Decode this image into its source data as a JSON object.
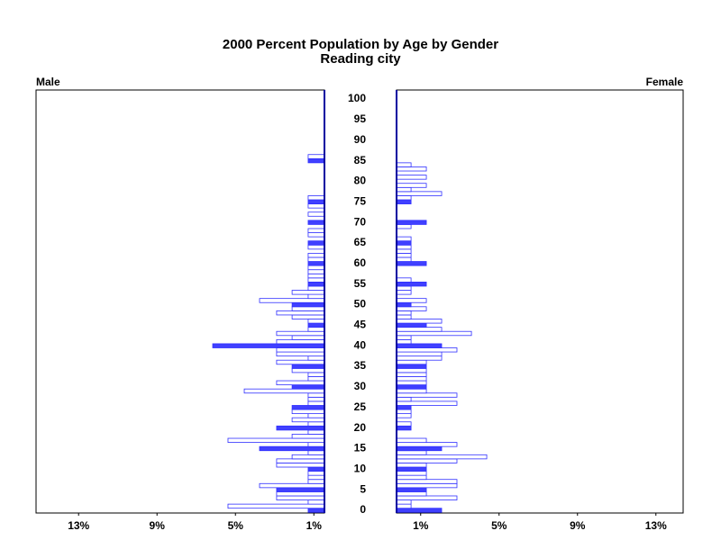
{
  "chart_data": [
    {
      "type": "bar",
      "orientation": "horizontal",
      "title": "2000 Percent Population by Age by Gender",
      "subtitle": "Reading city",
      "label": "Male",
      "x": [
        0,
        1,
        2,
        3,
        4,
        5,
        6,
        7,
        8,
        9,
        10,
        11,
        12,
        13,
        14,
        15,
        16,
        17,
        18,
        19,
        20,
        21,
        22,
        23,
        24,
        25,
        26,
        27,
        28,
        29,
        30,
        31,
        32,
        33,
        34,
        35,
        36,
        37,
        38,
        39,
        40,
        41,
        42,
        43,
        44,
        45,
        46,
        47,
        48,
        49,
        50,
        51,
        52,
        53,
        54,
        55,
        56,
        57,
        58,
        59,
        60,
        61,
        62,
        63,
        64,
        65,
        66,
        67,
        68,
        69,
        70,
        71,
        72,
        73,
        74,
        75,
        76,
        77,
        78,
        79,
        80,
        81,
        82,
        83,
        84,
        85,
        86,
        87,
        88,
        89,
        90,
        91,
        92,
        93,
        94,
        95,
        96,
        97,
        98,
        99,
        100
      ],
      "values": [
        1.29,
        5.38,
        1.29,
        2.9,
        2.9,
        2.9,
        3.77,
        1.29,
        1.29,
        1.29,
        1.29,
        2.9,
        2.9,
        2.11,
        1.29,
        3.77,
        1.29,
        5.38,
        2.11,
        1.29,
        2.9,
        1.29,
        2.11,
        1.29,
        2.11,
        2.11,
        1.29,
        1.29,
        1.29,
        4.55,
        2.11,
        2.9,
        1.29,
        1.29,
        2.11,
        2.11,
        2.9,
        1.29,
        2.9,
        2.9,
        6.16,
        2.9,
        2.11,
        2.9,
        1.29,
        1.29,
        1.29,
        2.11,
        2.9,
        2.11,
        2.11,
        3.77,
        1.29,
        2.11,
        1.29,
        1.29,
        1.29,
        1.29,
        1.29,
        1.29,
        1.29,
        1.29,
        1.29,
        null,
        1.29,
        1.29,
        null,
        1.29,
        1.29,
        null,
        1.29,
        null,
        1.29,
        null,
        1.29,
        1.29,
        1.29,
        null,
        null,
        null,
        null,
        null,
        null,
        null,
        null,
        1.29,
        1.29,
        null,
        null,
        null,
        null,
        null,
        null,
        null,
        null,
        null,
        null,
        null,
        null,
        null,
        null
      ],
      "fill_color": "#4040ff",
      "outline_color": "#3030ff",
      "filled_every": 5,
      "xlim": [
        15.17,
        0.46
      ],
      "xticks": [
        {
          "value": 13,
          "label": "13%"
        },
        {
          "value": 9,
          "label": "9%"
        },
        {
          "value": 5,
          "label": "5%"
        },
        {
          "value": 1,
          "label": "1%"
        }
      ],
      "ylim": [
        -0.66,
        102.2
      ],
      "yticks": [
        0,
        5,
        10,
        15,
        20,
        25,
        30,
        35,
        40,
        45,
        50,
        55,
        60,
        65,
        70,
        75,
        80,
        85,
        90,
        95,
        100
      ]
    },
    {
      "type": "bar",
      "orientation": "horizontal",
      "label": "Female",
      "x": [
        0,
        1,
        2,
        3,
        4,
        5,
        6,
        7,
        8,
        9,
        10,
        11,
        12,
        13,
        14,
        15,
        16,
        17,
        18,
        19,
        20,
        21,
        22,
        23,
        24,
        25,
        26,
        27,
        28,
        29,
        30,
        31,
        32,
        33,
        34,
        35,
        36,
        37,
        38,
        39,
        40,
        41,
        42,
        43,
        44,
        45,
        46,
        47,
        48,
        49,
        50,
        51,
        52,
        53,
        54,
        55,
        56,
        57,
        58,
        59,
        60,
        61,
        62,
        63,
        64,
        65,
        66,
        67,
        68,
        69,
        70,
        71,
        72,
        73,
        74,
        75,
        76,
        77,
        78,
        79,
        80,
        81,
        82,
        83,
        84,
        85,
        86,
        87,
        88,
        89,
        90,
        91,
        92,
        93,
        94,
        95,
        96,
        97,
        98,
        99,
        100
      ],
      "values": [
        2.07,
        0.51,
        0.51,
        2.85,
        1.29,
        1.29,
        2.85,
        2.85,
        1.29,
        1.29,
        1.29,
        1.29,
        2.85,
        4.37,
        1.29,
        2.07,
        2.85,
        1.29,
        null,
        null,
        0.51,
        0.51,
        null,
        0.51,
        0.51,
        0.51,
        2.85,
        0.51,
        2.85,
        1.29,
        1.29,
        1.29,
        1.29,
        1.29,
        1.29,
        1.29,
        1.29,
        2.07,
        2.07,
        2.85,
        2.07,
        0.51,
        0.51,
        3.59,
        2.07,
        1.29,
        2.07,
        0.51,
        0.51,
        1.29,
        0.51,
        1.29,
        null,
        0.51,
        0.51,
        1.29,
        0.51,
        null,
        null,
        null,
        1.29,
        0.51,
        0.51,
        0.51,
        0.51,
        0.51,
        0.51,
        null,
        null,
        0.51,
        1.29,
        null,
        null,
        null,
        null,
        0.51,
        0.51,
        2.07,
        0.51,
        1.29,
        null,
        1.29,
        null,
        1.29,
        0.51,
        null,
        null,
        null,
        null,
        null,
        null,
        null,
        null,
        null,
        null,
        null,
        null,
        null,
        null,
        null,
        null
      ],
      "fill_color": "#4040ff",
      "outline_color": "#3030ff",
      "filled_every": 5,
      "xlim": [
        -0.23,
        14.39
      ],
      "xticks": [
        {
          "value": 1,
          "label": "1%"
        },
        {
          "value": 5,
          "label": "5%"
        },
        {
          "value": 9,
          "label": "9%"
        },
        {
          "value": 13,
          "label": "13%"
        }
      ],
      "ylim": [
        -0.66,
        102.2
      ]
    }
  ]
}
